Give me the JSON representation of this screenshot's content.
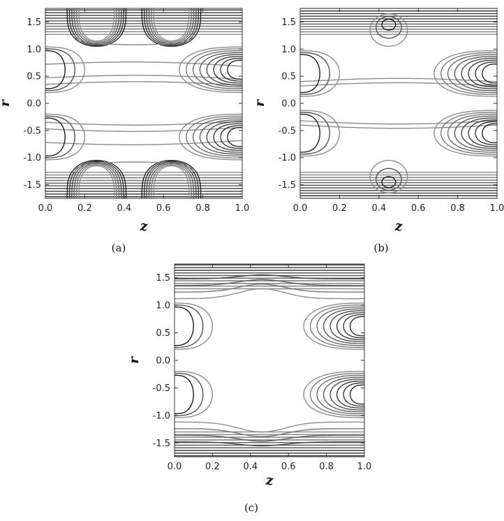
{
  "chart_data": [
    {
      "type": "contour",
      "panel": "(a)",
      "xlabel": "z",
      "ylabel": "r",
      "xlim": [
        0.0,
        1.0
      ],
      "ylim": [
        -1.75,
        1.75
      ],
      "xticks": [
        "0.0",
        "0.2",
        "0.4",
        "0.6",
        "0.8",
        "1.0"
      ],
      "yticks": [
        "1.5",
        "1.0",
        "0.5",
        "0.0",
        "-0.5",
        "-1.0",
        "-1.5"
      ],
      "grid": false,
      "line_color_light": "#8c8c8c",
      "line_color_dark": "#1a1a1a",
      "features": {
        "top_band_start_r": 1.27,
        "top_dip": {
          "z": 0.46,
          "r": 1.7
        },
        "top_islands": [
          {
            "z": 0.4,
            "r": 1.5,
            "extent_z": 0.13
          }
        ],
        "mid_lines_r": [
          0.35,
          0.47,
          0.72
        ],
        "right_side_lobes_r": [
          0.62,
          -0.62
        ],
        "left_side_lobes_r": [
          0.62,
          -0.62
        ]
      }
    },
    {
      "type": "contour",
      "panel": "(b)",
      "xlabel": "z",
      "ylabel": "r",
      "xlim": [
        0.0,
        1.0
      ],
      "ylim": [
        -1.75,
        1.75
      ],
      "xticks": [
        "0.0",
        "0.2",
        "0.4",
        "0.6",
        "0.8",
        "1.0"
      ],
      "yticks": [
        "1.5",
        "1.0",
        "0.5",
        "0.0",
        "-0.5",
        "-1.0",
        "-1.5"
      ],
      "grid": false,
      "line_color_light": "#8c8c8c",
      "line_color_dark": "#1a1a1a",
      "features": {
        "top_band_start_r": 1.27,
        "top_island": {
          "z": 0.45,
          "r": 1.45
        },
        "mid_lines_r": [
          0.32,
          0.4
        ],
        "right_side_lobes_r": [
          0.55,
          -0.55
        ],
        "left_side_lobes_r": [
          0.55,
          -0.55
        ]
      }
    },
    {
      "type": "contour",
      "panel": "(c)",
      "xlabel": "z",
      "ylabel": "r",
      "xlim": [
        0.0,
        1.0
      ],
      "ylim": [
        -1.75,
        1.75
      ],
      "xticks": [
        "0.0",
        "0.2",
        "0.4",
        "0.6",
        "0.8",
        "1.0"
      ],
      "yticks": [
        "1.5",
        "1.0",
        "0.5",
        "0.0",
        "-0.5",
        "-1.0",
        "-1.5"
      ],
      "grid": false,
      "line_color_light": "#8c8c8c",
      "line_color_dark": "#1a1a1a",
      "features": {
        "top_band_start_r": 1.3,
        "top_peak": {
          "z": 0.46,
          "r": 1.2
        },
        "right_side_lobes_r": [
          0.62,
          -0.62
        ],
        "left_side_lobes_r": [
          0.62,
          -0.62
        ]
      }
    }
  ],
  "panel_labels": [
    "(a)",
    "(b)",
    "(c)"
  ]
}
